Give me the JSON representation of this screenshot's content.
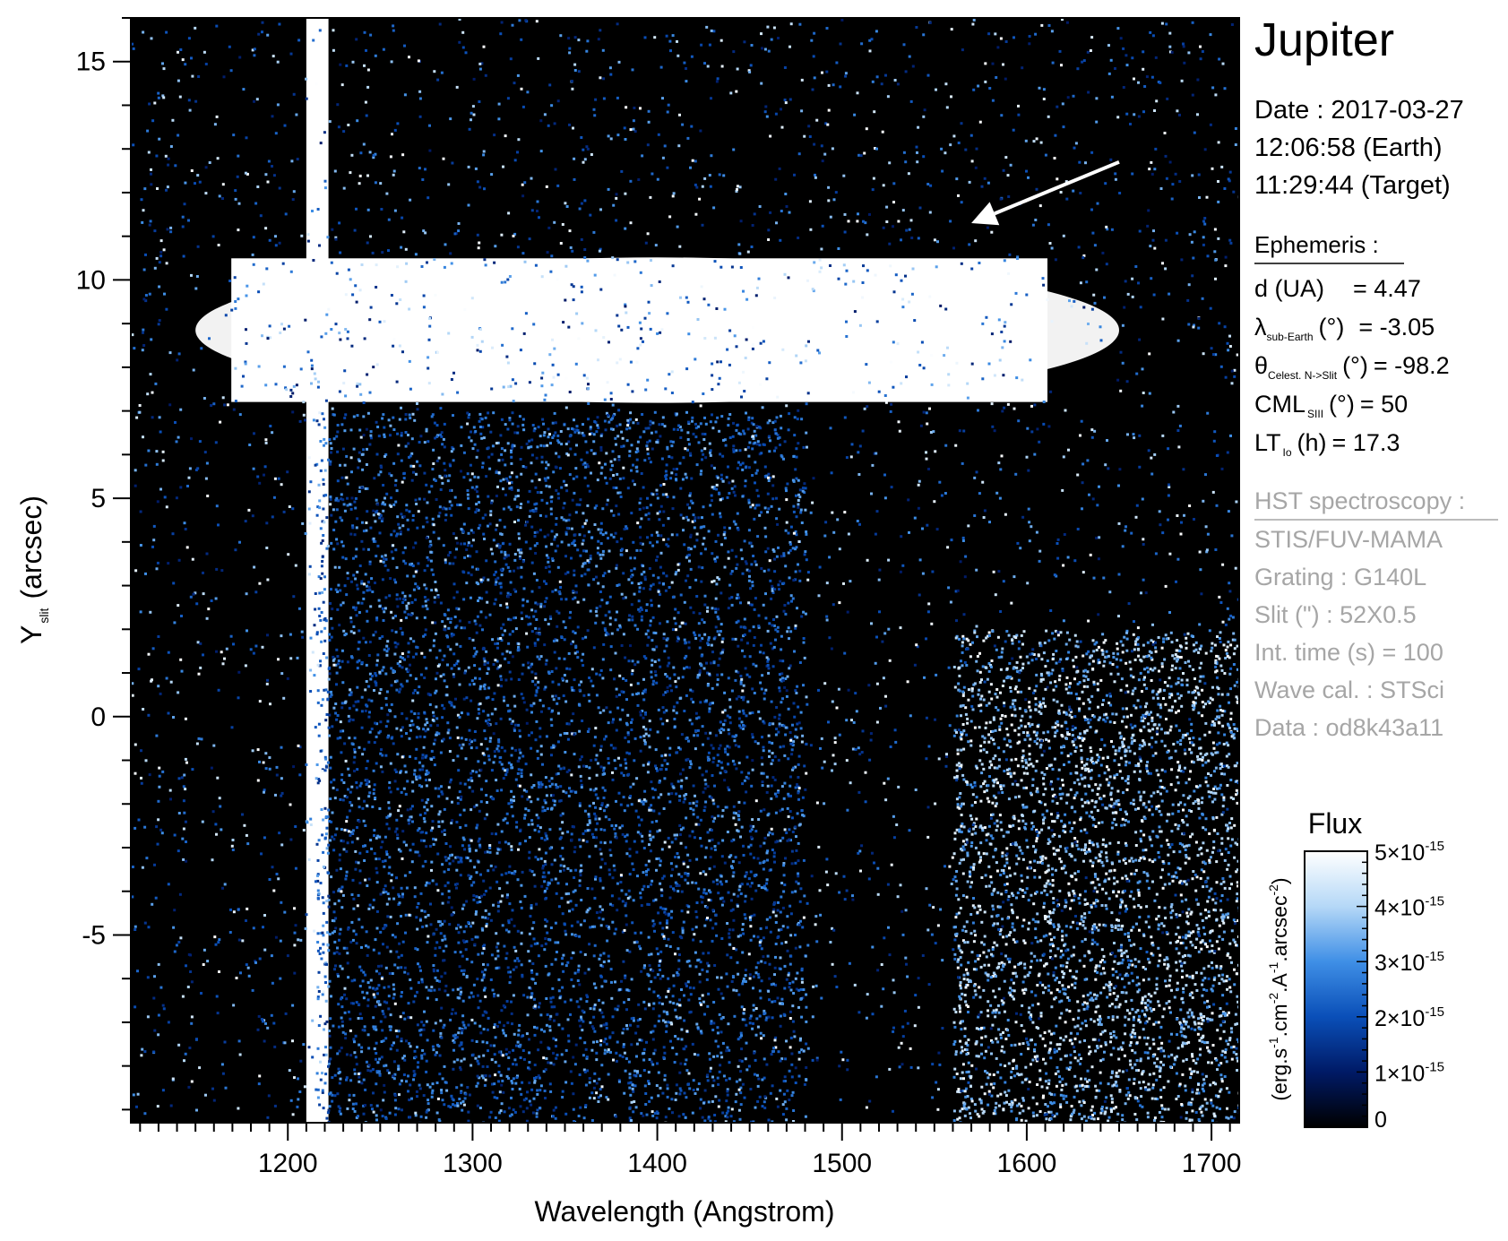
{
  "target": "Jupiter",
  "observation": {
    "date_line": "Date : 2017-03-27",
    "earth_time_line": "12:06:58 (Earth)",
    "target_time_line": "11:29:44 (Target)"
  },
  "ephemeris": {
    "heading": "Ephemeris :",
    "distance": {
      "label": "d (UA)",
      "value": "= 4.47"
    },
    "lambda": {
      "symbol": "λ",
      "sub": "sub-Earth",
      "unit": "(°)",
      "value": "= -3.05"
    },
    "theta": {
      "symbol": "θ",
      "sub": "Celest. N->Slit",
      "unit": "(°)",
      "value": "= -98.2"
    },
    "cml": {
      "label": "CML",
      "sub": "SIII",
      "unit": "(°)",
      "value": "= 50"
    },
    "lt": {
      "label": "LT",
      "sub": "Io",
      "unit": "(h)",
      "value": "= 17.3"
    }
  },
  "hst": {
    "heading": "HST spectroscopy :",
    "lines": [
      "STIS/FUV-MAMA",
      "Grating : G140L",
      "Slit (\") : 52X0.5",
      "Int. time (s) = 100",
      "Wave cal. : STSci",
      "Data : od8k43a11"
    ]
  },
  "colorbar": {
    "title": "Flux",
    "unit_parts": [
      "(erg.s",
      "-1",
      ".cm",
      "-2",
      ".A",
      "-1",
      ".arcsec",
      "-2",
      ")"
    ],
    "ticks": [
      {
        "value": 0,
        "mantissa": "0",
        "exp": ""
      },
      {
        "value": 1e-15,
        "mantissa": "1×10",
        "exp": "-15"
      },
      {
        "value": 2e-15,
        "mantissa": "2×10",
        "exp": "-15"
      },
      {
        "value": 3e-15,
        "mantissa": "3×10",
        "exp": "-15"
      },
      {
        "value": 4e-15,
        "mantissa": "4×10",
        "exp": "-15"
      },
      {
        "value": 5e-15,
        "mantissa": "5×10",
        "exp": "-15"
      }
    ],
    "range": [
      0,
      5e-15
    ],
    "colormap": [
      "#000000",
      "#001a66",
      "#0a4fb8",
      "#3f8fe6",
      "#b5d8f7",
      "#ffffff"
    ]
  },
  "chart_data": {
    "type": "heatmap",
    "title": "",
    "xlabel": "Wavelength (Angstrom)",
    "ylabel_main": "Y",
    "ylabel_sub": "slit",
    "ylabel_unit": "(arcsec)",
    "xlim": [
      1115,
      1715
    ],
    "ylim": [
      -9.3,
      16
    ],
    "xticks": [
      1200,
      1300,
      1400,
      1500,
      1600,
      1700
    ],
    "xtick_labels": [
      "1200",
      "1300",
      "1400",
      "1500",
      "1600",
      "1700"
    ],
    "yticks": [
      -5,
      0,
      5,
      10,
      15
    ],
    "ytick_labels": [
      "-5",
      "0",
      "5",
      "10",
      "15"
    ],
    "features": [
      {
        "kind": "vertical_band",
        "x_center": 1216,
        "x_halfwidth": 6,
        "y_range": [
          -9.3,
          16
        ],
        "level": 1.0
      },
      {
        "kind": "horizontal_band",
        "y_range": [
          7.0,
          10.7
        ],
        "x_range": [
          1150,
          1650
        ],
        "level": 1.0
      },
      {
        "kind": "diffuse_blue",
        "x_range": [
          1215,
          1480
        ],
        "y_range": [
          -9.3,
          7
        ],
        "level": 0.45
      },
      {
        "kind": "speckle_region",
        "x_range": [
          1560,
          1715
        ],
        "y_range": [
          -9.3,
          2
        ],
        "level": 0.9
      }
    ],
    "annotation": {
      "kind": "arrow",
      "from": [
        1650,
        12.7
      ],
      "to": [
        1570,
        11.3
      ],
      "color": "#ffffff"
    }
  }
}
